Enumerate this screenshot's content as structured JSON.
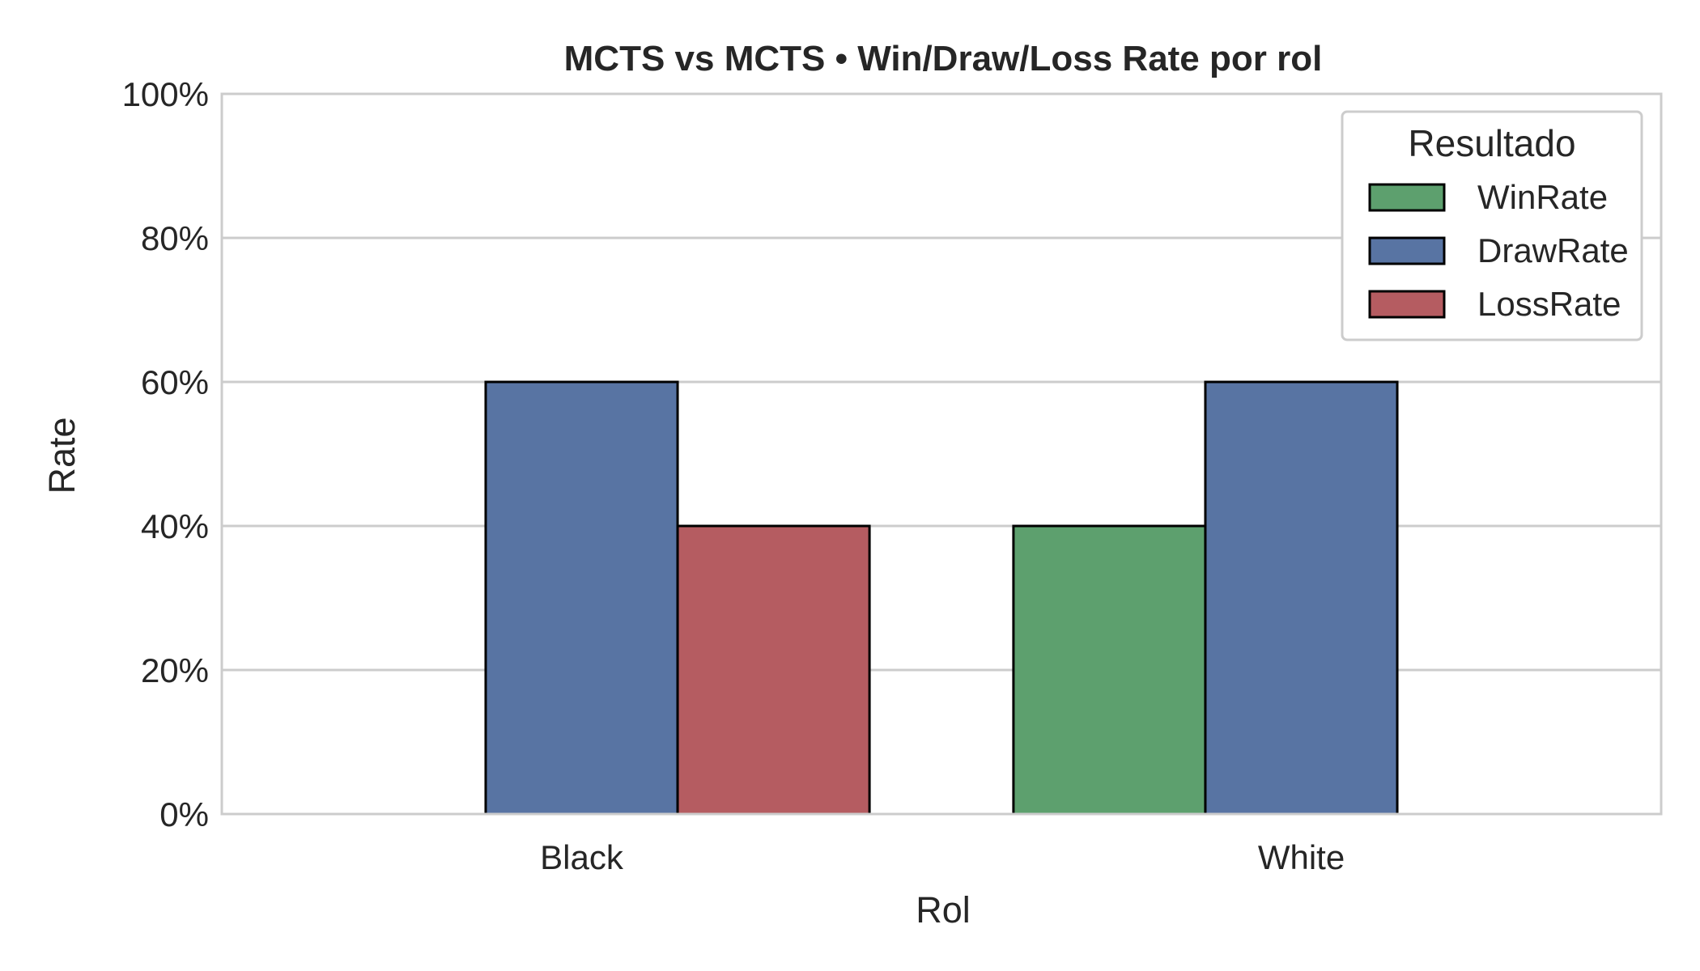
{
  "chart_data": {
    "type": "bar",
    "title": "MCTS vs MCTS • Win/Draw/Loss Rate por rol",
    "xlabel": "Rol",
    "ylabel": "Rate",
    "categories": [
      "Black",
      "White"
    ],
    "ylim": [
      0,
      100
    ],
    "y_ticks": [
      "0%",
      "20%",
      "40%",
      "60%",
      "80%",
      "100%"
    ],
    "grid": "horizontal",
    "legend": {
      "title": "Resultado",
      "placement": "top-right"
    },
    "series": [
      {
        "name": "WinRate",
        "color": "#5da06e",
        "values": [
          0,
          40
        ]
      },
      {
        "name": "DrawRate",
        "color": "#5874a3",
        "values": [
          60,
          60
        ]
      },
      {
        "name": "LossRate",
        "color": "#b55c61",
        "values": [
          40,
          0
        ]
      }
    ]
  }
}
